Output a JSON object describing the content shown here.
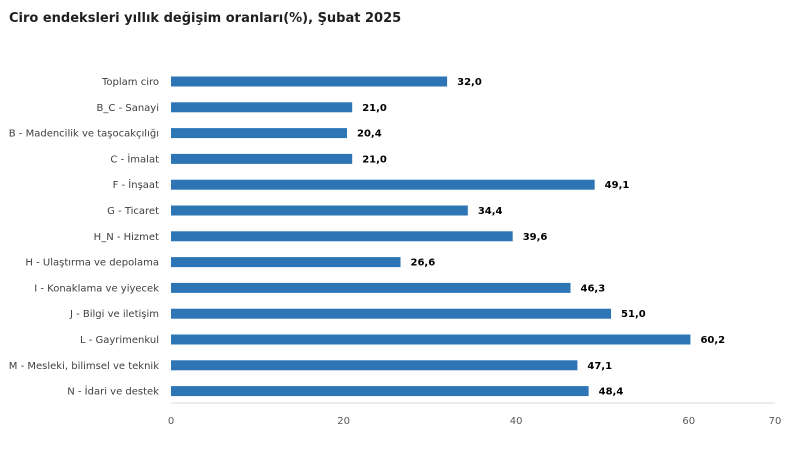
{
  "title": "Ciro endeksleri yıllık değişim oranları(%), Şubat 2025",
  "colors": {
    "bar": "#2e75b6",
    "axis": "#d9d9d9"
  },
  "chart_data": {
    "type": "bar",
    "orientation": "horizontal",
    "title": "Ciro endeksleri yıllık değişim oranları(%), Şubat 2025",
    "categories": [
      "Toplam ciro",
      "B_C - Sanayi",
      "B - Madencilik ve taşocakçılığı",
      "C - İmalat",
      "F - İnşaat",
      "G - Ticaret",
      "H_N - Hizmet",
      "H - Ulaştırma ve depolama",
      "I - Konaklama ve yiyecek",
      "J - Bilgi ve iletişim",
      "L - Gayrimenkul",
      "M - Mesleki, bilimsel ve teknik",
      "N - İdari ve destek"
    ],
    "values": [
      32.0,
      21.0,
      20.4,
      21.0,
      49.1,
      34.4,
      39.6,
      26.6,
      46.3,
      51.0,
      60.2,
      47.1,
      48.4
    ],
    "value_labels": [
      "32,0",
      "21,0",
      "20,4",
      "21,0",
      "49,1",
      "34,4",
      "39,6",
      "26,6",
      "46,3",
      "51,0",
      "60,2",
      "47,1",
      "48,4"
    ],
    "xlim": [
      0,
      70
    ],
    "xticks": [
      0,
      20,
      40,
      60,
      70
    ],
    "xtick_labels": [
      "0",
      "20",
      "40",
      "60",
      "70"
    ],
    "grid": false,
    "legend": "none"
  }
}
